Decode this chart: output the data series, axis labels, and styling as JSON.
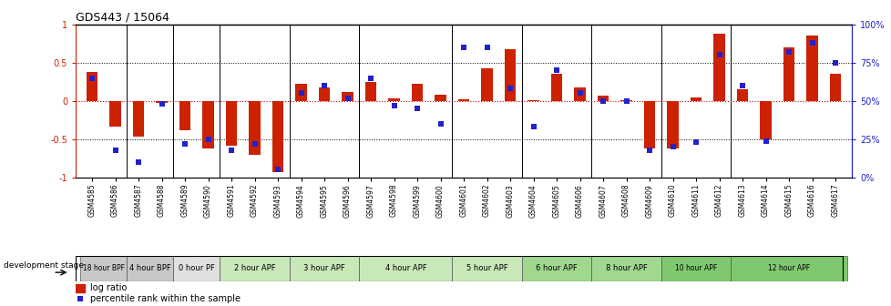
{
  "title": "GDS443 / 15064",
  "samples": [
    "GSM4585",
    "GSM4586",
    "GSM4587",
    "GSM4588",
    "GSM4589",
    "GSM4590",
    "GSM4591",
    "GSM4592",
    "GSM4593",
    "GSM4594",
    "GSM4595",
    "GSM4596",
    "GSM4597",
    "GSM4598",
    "GSM4599",
    "GSM4600",
    "GSM4601",
    "GSM4602",
    "GSM4603",
    "GSM4604",
    "GSM4605",
    "GSM4606",
    "GSM4607",
    "GSM4608",
    "GSM4609",
    "GSM4610",
    "GSM4611",
    "GSM4612",
    "GSM4613",
    "GSM4614",
    "GSM4615",
    "GSM4616",
    "GSM4617"
  ],
  "log_ratio": [
    0.38,
    -0.33,
    -0.47,
    -0.03,
    -0.38,
    -0.62,
    -0.58,
    -0.7,
    -0.93,
    0.22,
    0.18,
    0.12,
    0.25,
    0.03,
    0.22,
    0.08,
    0.02,
    0.43,
    0.68,
    0.01,
    0.35,
    0.18,
    0.07,
    0.01,
    -0.62,
    -0.62,
    0.05,
    0.88,
    0.15,
    -0.5,
    0.7,
    0.85,
    0.35
  ],
  "percentile": [
    65,
    18,
    10,
    48,
    22,
    25,
    18,
    22,
    5,
    55,
    60,
    52,
    65,
    47,
    45,
    35,
    85,
    85,
    58,
    33,
    70,
    55,
    50,
    50,
    18,
    20,
    23,
    80,
    60,
    24,
    82,
    88,
    75
  ],
  "stages": [
    {
      "label": "18 hour BPF",
      "start": 0,
      "end": 2,
      "color": "#c8c8c8"
    },
    {
      "label": "4 hour BPF",
      "start": 2,
      "end": 4,
      "color": "#c8c8c8"
    },
    {
      "label": "0 hour PF",
      "start": 4,
      "end": 6,
      "color": "#e0e0e0"
    },
    {
      "label": "2 hour APF",
      "start": 6,
      "end": 9,
      "color": "#c8e8b8"
    },
    {
      "label": "3 hour APF",
      "start": 9,
      "end": 12,
      "color": "#c8e8b8"
    },
    {
      "label": "4 hour APF",
      "start": 12,
      "end": 16,
      "color": "#c8e8b8"
    },
    {
      "label": "5 hour APF",
      "start": 16,
      "end": 19,
      "color": "#c8e8b8"
    },
    {
      "label": "6 hour APF",
      "start": 19,
      "end": 22,
      "color": "#a0d890"
    },
    {
      "label": "8 hour APF",
      "start": 22,
      "end": 25,
      "color": "#a0d890"
    },
    {
      "label": "10 hour APF",
      "start": 25,
      "end": 28,
      "color": "#80c870"
    },
    {
      "label": "12 hour APF",
      "start": 28,
      "end": 33,
      "color": "#80c870"
    }
  ],
  "bar_color": "#cc2200",
  "dot_color": "#2222cc",
  "ylim_left": [
    -1.0,
    1.0
  ],
  "ylim_right": [
    0,
    100
  ],
  "yticks_left": [
    -1.0,
    -0.5,
    0.0,
    0.5,
    1.0
  ],
  "yticks_right": [
    0,
    25,
    50,
    75,
    100
  ],
  "hline_dotted_vals": [
    0.5,
    -0.5
  ],
  "hline_zero_color": "#cc0000",
  "figsize": [
    9.79,
    3.36
  ],
  "dpi": 100
}
